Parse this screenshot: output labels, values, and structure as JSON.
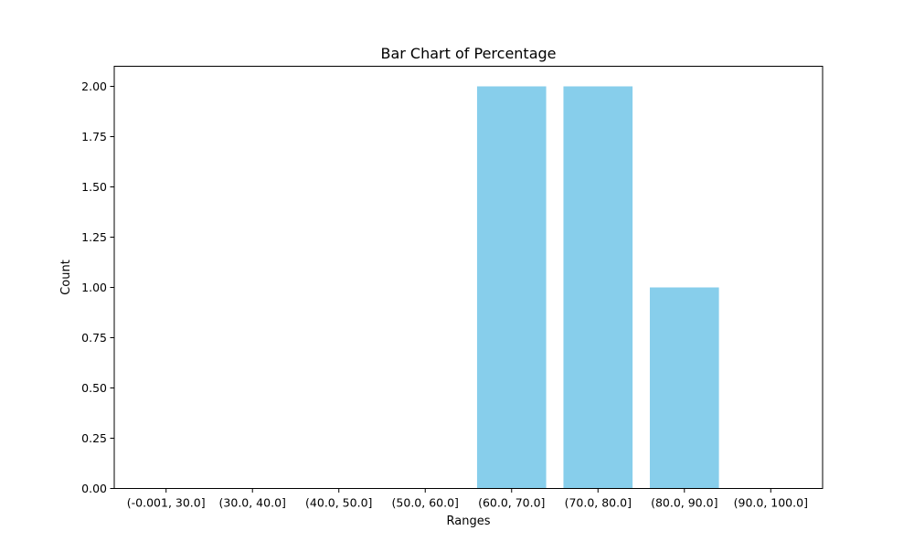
{
  "chart_data": {
    "type": "bar",
    "title": "Bar Chart of Percentage",
    "xlabel": "Ranges",
    "ylabel": "Count",
    "categories": [
      "(-0.001, 30.0]",
      "(30.0, 40.0]",
      "(40.0, 50.0]",
      "(50.0, 60.0]",
      "(60.0, 70.0]",
      "(70.0, 80.0]",
      "(80.0, 90.0]",
      "(90.0, 100.0]"
    ],
    "values": [
      0,
      0,
      0,
      0,
      2,
      2,
      1,
      0
    ],
    "ylim": [
      0,
      2.1
    ],
    "yticks": [
      "0.00",
      "0.25",
      "0.50",
      "0.75",
      "1.00",
      "1.25",
      "1.50",
      "1.75",
      "2.00"
    ],
    "bar_color": "#87CEEB",
    "grid": false,
    "legend": false
  }
}
